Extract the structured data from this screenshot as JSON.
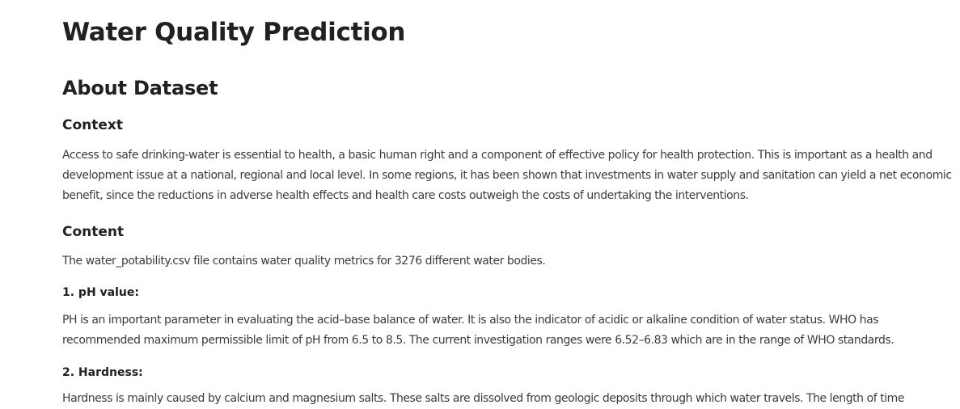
{
  "page_title": "Water Quality Prediction",
  "dataset": {
    "heading": "About Dataset",
    "context": {
      "heading": "Context",
      "text": "Access to safe drinking-water is essential to health, a basic human right and a component of effective policy for health protection. This is important as a health and development issue at a national, regional and local level. In some regions, it has been shown that investments in water supply and sanitation can yield a net economic benefit, since the reductions in adverse health effects and health care costs outweigh the costs of undertaking the interventions."
    },
    "content": {
      "heading": "Content",
      "text": "The water_potability.csv file contains water quality metrics for 3276 different water bodies."
    },
    "metrics": [
      {
        "title": "1. pH value:",
        "text": "PH is an important parameter in evaluating the acid–base balance of water. It is also the indicator of acidic or alkaline condition of water status. WHO has recommended maximum permissible limit of pH from 6.5 to 8.5. The current investigation ranges were 6.52–6.83 which are in the range of WHO standards."
      },
      {
        "title": "2. Hardness:",
        "text": "Hardness is mainly caused by calcium and magnesium salts. These salts are dissolved from geologic deposits through which water travels. The length of time"
      }
    ]
  }
}
